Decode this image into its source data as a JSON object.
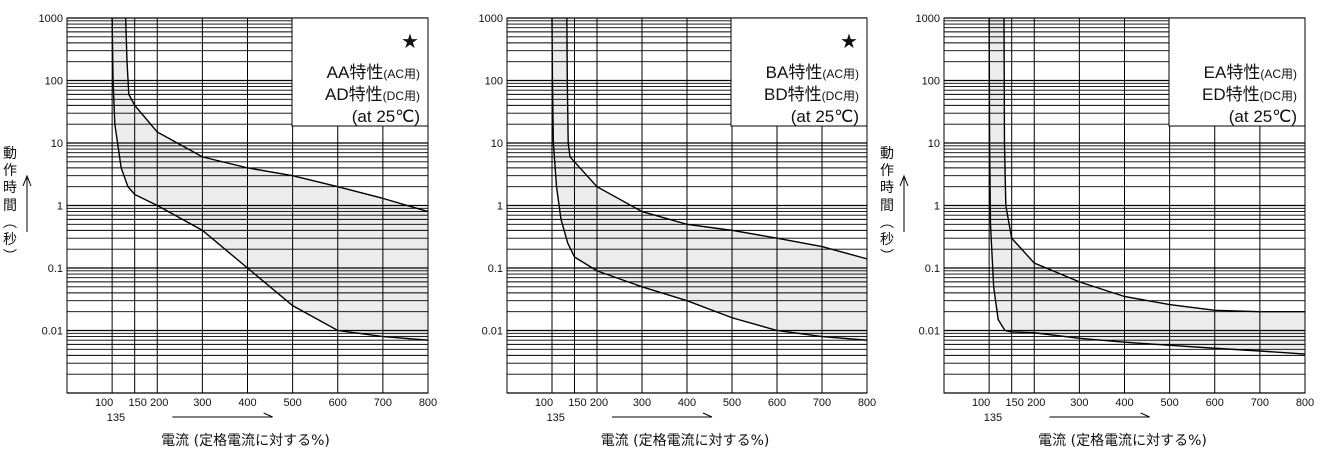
{
  "chart_data": [
    {
      "type": "area",
      "legend_lines": [
        {
          "main": "AA特性",
          "sub": "(AC用)"
        },
        {
          "main": "AD特性",
          "sub": "(DC用)"
        },
        {
          "main": "(at 25℃)",
          "sub": ""
        }
      ],
      "marker": "★",
      "xlabel": "電流 (定格電流に対する%)",
      "ylabel": "動作時間（秒）",
      "x_ticks": [
        "100",
        "150",
        "200",
        "300",
        "400",
        "500",
        "600",
        "700",
        "800"
      ],
      "x_tick_values": [
        100,
        150,
        200,
        300,
        400,
        500,
        600,
        700,
        800
      ],
      "x_extra_label": "135",
      "y_ticks": [
        "1000",
        "100",
        "10",
        "1",
        "0.1",
        "0.01"
      ],
      "y_tick_values": [
        1000,
        100,
        10,
        1,
        0.1,
        0.01
      ],
      "xlim": [
        0,
        800
      ],
      "ylim": [
        0.001,
        1000
      ],
      "y_scale": "log",
      "series": [
        {
          "values": [
            [
              100,
              1000
            ],
            [
              102,
              100
            ],
            [
              106,
              20
            ],
            [
              120,
              4
            ],
            [
              135,
              2
            ],
            [
              150,
              1.5
            ],
            [
              200,
              1
            ],
            [
              300,
              0.4
            ],
            [
              400,
              0.1
            ],
            [
              500,
              0.025
            ],
            [
              600,
              0.01
            ],
            [
              700,
              0.008
            ],
            [
              800,
              0.007
            ]
          ]
        },
        {
          "values": [
            [
              130,
              1000
            ],
            [
              133,
              200
            ],
            [
              137,
              60
            ],
            [
              150,
              40
            ],
            [
              200,
              15
            ],
            [
              300,
              6
            ],
            [
              400,
              4
            ],
            [
              500,
              3
            ],
            [
              600,
              2
            ],
            [
              700,
              1.3
            ],
            [
              800,
              0.8
            ]
          ]
        }
      ]
    },
    {
      "type": "area",
      "legend_lines": [
        {
          "main": "BA特性",
          "sub": "(AC用)"
        },
        {
          "main": "BD特性",
          "sub": "(DC用)"
        },
        {
          "main": "(at 25℃)",
          "sub": ""
        }
      ],
      "marker": "★",
      "xlabel": "電流 (定格電流に対する%)",
      "ylabel": "",
      "x_ticks": [
        "100",
        "150",
        "200",
        "300",
        "400",
        "500",
        "600",
        "700",
        "800"
      ],
      "x_tick_values": [
        100,
        150,
        200,
        300,
        400,
        500,
        600,
        700,
        800
      ],
      "x_extra_label": "135",
      "y_ticks": [
        "1000",
        "100",
        "10",
        "1",
        "0.1",
        "0.01"
      ],
      "y_tick_values": [
        1000,
        100,
        10,
        1,
        0.1,
        0.01
      ],
      "xlim": [
        0,
        800
      ],
      "ylim": [
        0.001,
        1000
      ],
      "y_scale": "log",
      "series": [
        {
          "values": [
            [
              100,
              1000
            ],
            [
              101,
              100
            ],
            [
              103,
              10
            ],
            [
              110,
              2
            ],
            [
              120,
              0.6
            ],
            [
              135,
              0.25
            ],
            [
              150,
              0.15
            ],
            [
              200,
              0.09
            ],
            [
              300,
              0.05
            ],
            [
              400,
              0.03
            ],
            [
              500,
              0.016
            ],
            [
              600,
              0.01
            ],
            [
              700,
              0.008
            ],
            [
              800,
              0.007
            ]
          ]
        },
        {
          "values": [
            [
              133,
              1000
            ],
            [
              134,
              100
            ],
            [
              136,
              10
            ],
            [
              140,
              6
            ],
            [
              150,
              5
            ],
            [
              200,
              2
            ],
            [
              300,
              0.8
            ],
            [
              400,
              0.5
            ],
            [
              500,
              0.4
            ],
            [
              600,
              0.3
            ],
            [
              700,
              0.22
            ],
            [
              800,
              0.14
            ]
          ]
        }
      ]
    },
    {
      "type": "area",
      "legend_lines": [
        {
          "main": "EA特性",
          "sub": "(AC用)"
        },
        {
          "main": "ED特性",
          "sub": "(DC用)"
        },
        {
          "main": "(at 25℃)",
          "sub": ""
        }
      ],
      "marker": "",
      "xlabel": "電流 (定格電流に対する%)",
      "ylabel": "動作時間（秒）",
      "x_ticks": [
        "100",
        "150",
        "200",
        "300",
        "400",
        "500",
        "600",
        "700",
        "800"
      ],
      "x_tick_values": [
        100,
        150,
        200,
        300,
        400,
        500,
        600,
        700,
        800
      ],
      "x_extra_label": "135",
      "y_ticks": [
        "1000",
        "100",
        "10",
        "1",
        "0.1",
        "0.01"
      ],
      "y_tick_values": [
        1000,
        100,
        10,
        1,
        0.1,
        0.01
      ],
      "xlim": [
        0,
        800
      ],
      "ylim": [
        0.001,
        1000
      ],
      "y_scale": "log",
      "series": [
        {
          "values": [
            [
              100,
              1000
            ],
            [
              101,
              10
            ],
            [
              103,
              0.5
            ],
            [
              110,
              0.05
            ],
            [
              120,
              0.015
            ],
            [
              135,
              0.01
            ],
            [
              150,
              0.0095
            ],
            [
              200,
              0.0092
            ],
            [
              300,
              0.0075
            ],
            [
              400,
              0.0065
            ],
            [
              500,
              0.0058
            ],
            [
              600,
              0.0052
            ],
            [
              700,
              0.0047
            ],
            [
              800,
              0.0042
            ]
          ]
        },
        {
          "values": [
            [
              133,
              1000
            ],
            [
              134,
              10
            ],
            [
              137,
              1
            ],
            [
              150,
              0.3
            ],
            [
              200,
              0.12
            ],
            [
              300,
              0.06
            ],
            [
              400,
              0.035
            ],
            [
              500,
              0.026
            ],
            [
              600,
              0.021
            ],
            [
              700,
              0.02
            ],
            [
              800,
              0.02
            ]
          ]
        }
      ]
    }
  ]
}
